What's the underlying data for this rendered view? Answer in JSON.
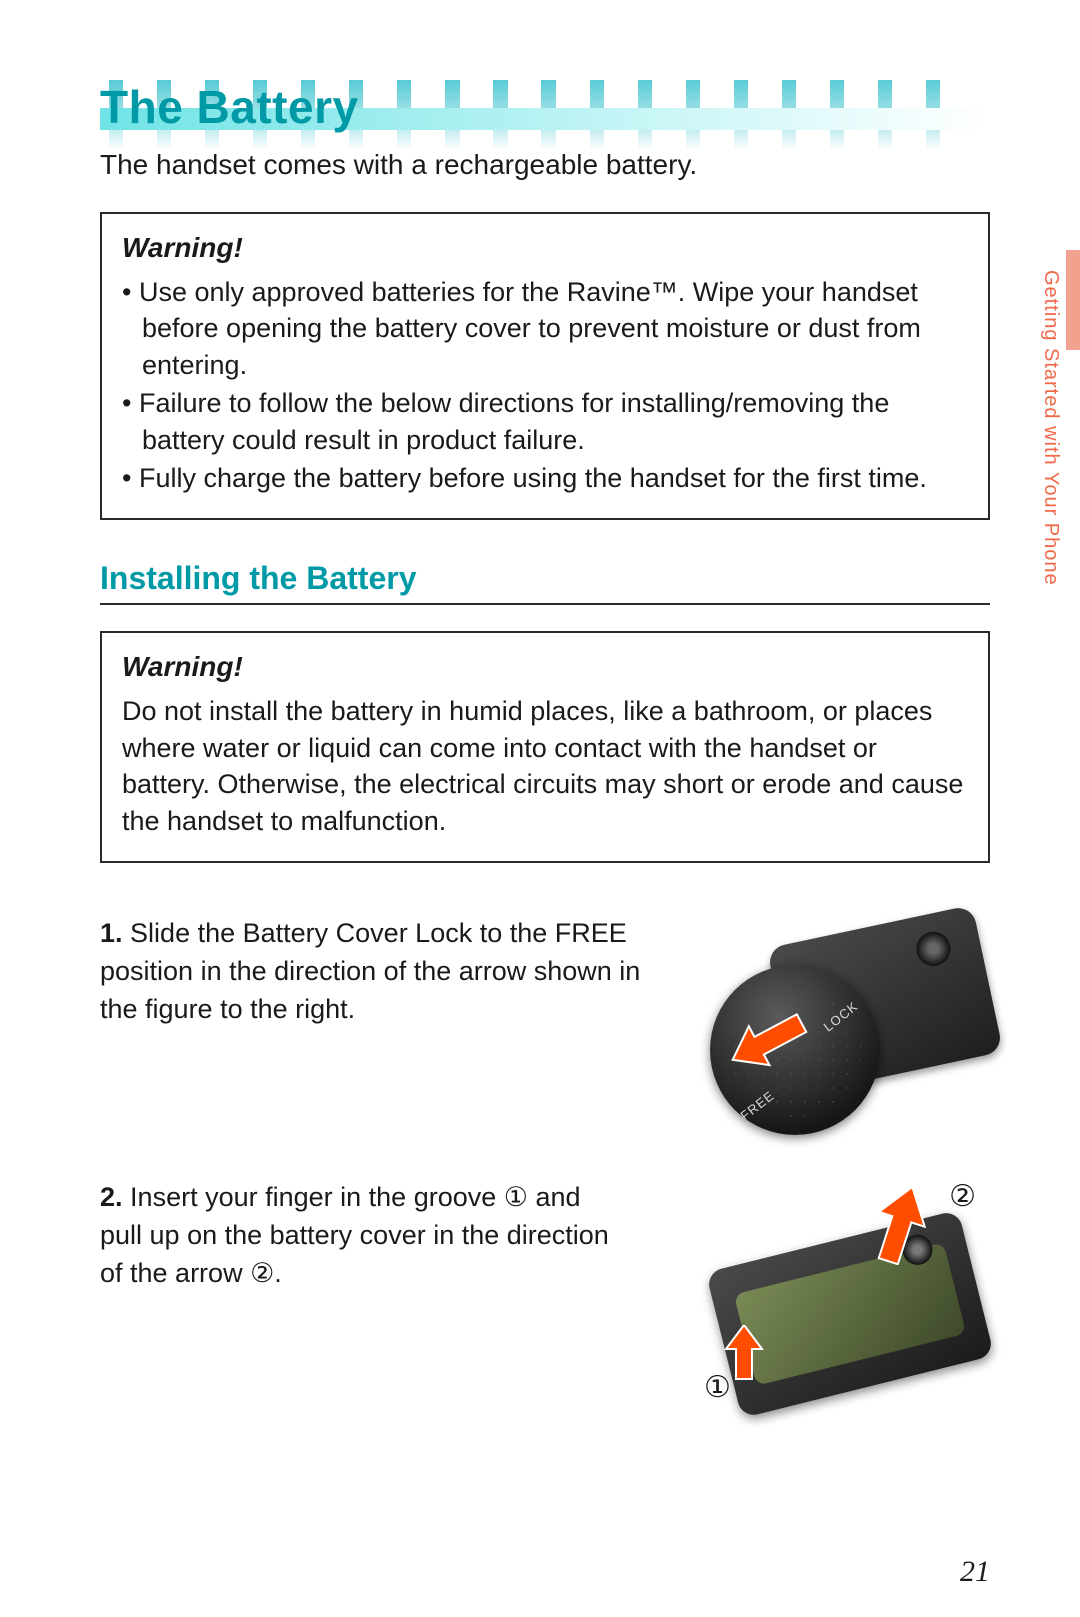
{
  "page": {
    "number": "21",
    "side_label": "Getting Started with Your Phone"
  },
  "colors": {
    "accent": "#009aa6",
    "accent_light": "#6fe3e6",
    "side_tab": "#f2a18f",
    "side_text": "#f06a4a",
    "arrow": "#ff4d00",
    "border": "#2a2a2a"
  },
  "title": "The Battery",
  "intro": "The handset comes with a rechargeable battery.",
  "warning1": {
    "heading": "Warning!",
    "items": [
      "Use only approved batteries for the Ravine™. Wipe your handset before opening the battery cover to prevent moisture or dust from entering.",
      "Failure to follow the below directions for installing/removing the battery could result in product failure.",
      "Fully charge the battery before using the handset for the first time."
    ]
  },
  "section_title": "Installing the Battery",
  "warning2": {
    "heading": "Warning!",
    "text": "Do not install the battery in humid places, like a bathroom, or places where water or liquid can come into contact with the handset or battery. Otherwise, the electrical circuits may short or erode and cause the handset to malfunction."
  },
  "steps": [
    {
      "num": "1.",
      "text": "Slide the Battery Cover Lock to the FREE position in the direction of the arrow shown in the figure to the right."
    },
    {
      "num": "2.",
      "text": "Insert your finger in the groove ① and pull up on the battery cover in the direction of the arrow ②."
    }
  ],
  "figure1": {
    "lock": "LOCK",
    "free": "FREE"
  },
  "figure2": {
    "marker1": "①",
    "marker2": "②"
  },
  "top_stripes": {
    "count": 18,
    "left_offset_pct": 1.0,
    "spacing_pct": 5.4,
    "width_pct": 1.6
  }
}
